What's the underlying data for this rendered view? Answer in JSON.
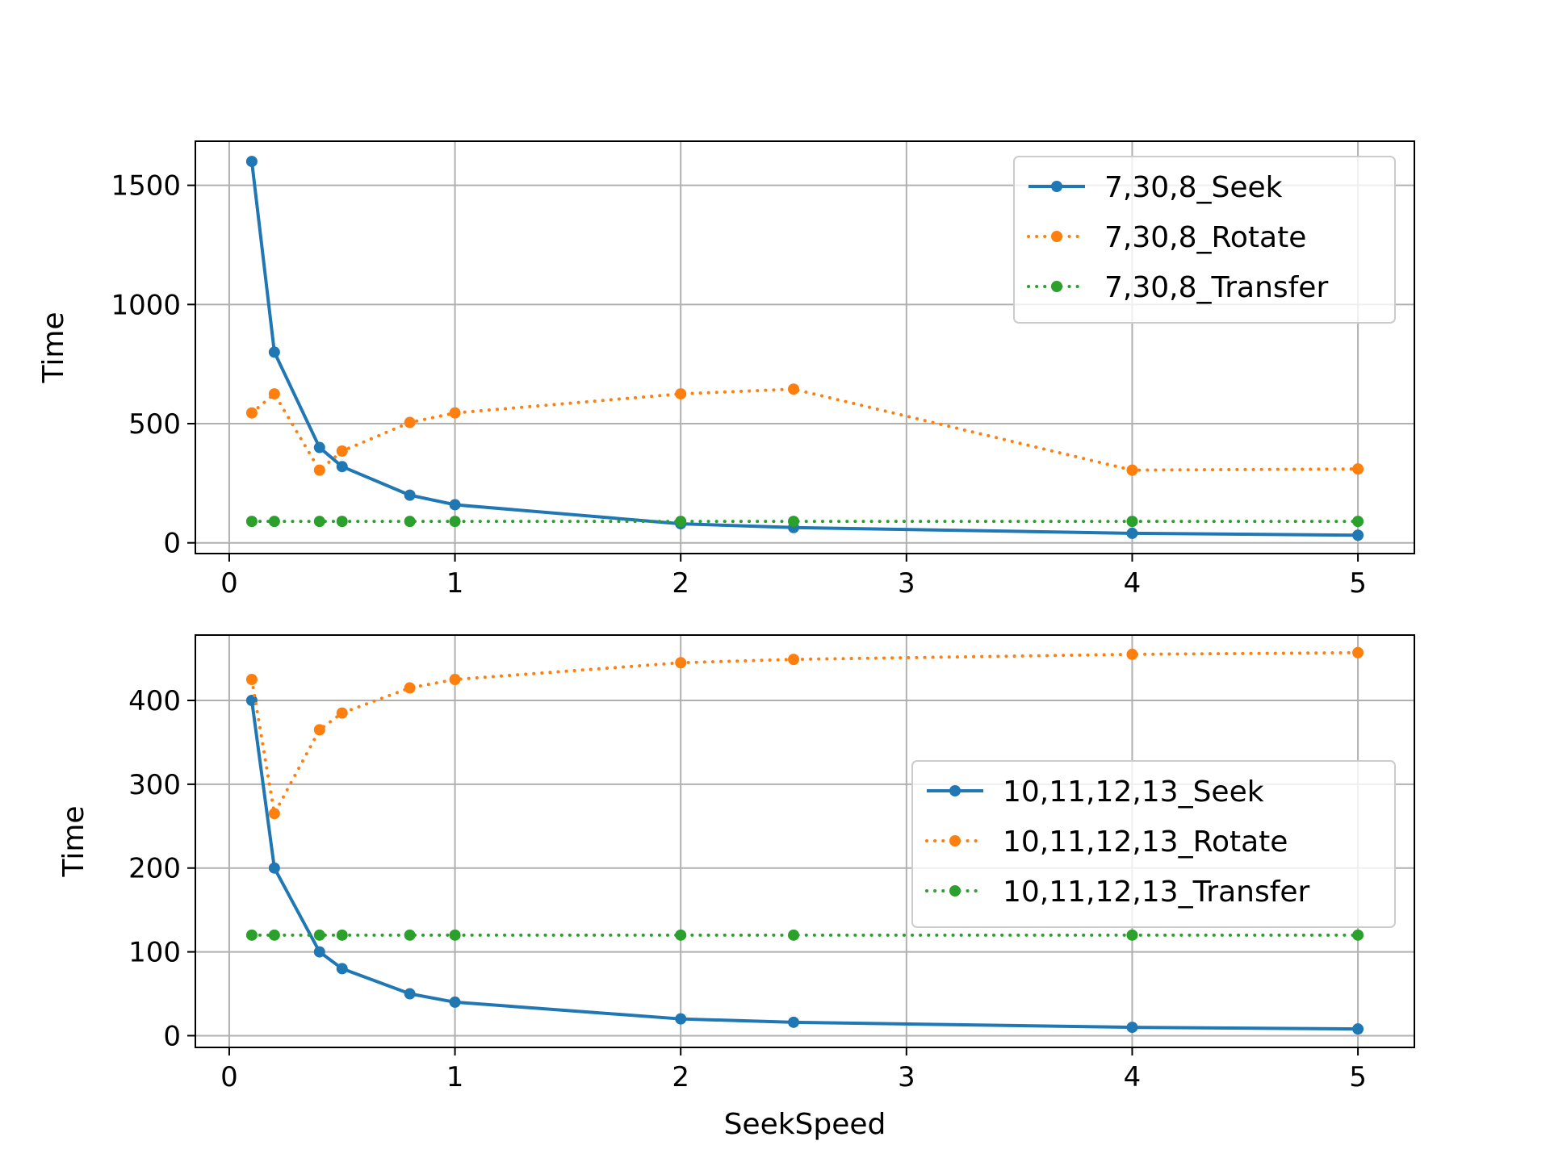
{
  "chart_data": [
    {
      "type": "line",
      "xlabel": "",
      "ylabel": "Time",
      "xlim": [
        -0.15,
        5.25
      ],
      "ylim": [
        -45,
        1685
      ],
      "xticks": [
        0,
        1,
        2,
        3,
        4,
        5
      ],
      "xtick_labels": [
        "0",
        "1",
        "2",
        "3",
        "4",
        "5"
      ],
      "yticks": [
        0,
        500,
        1000,
        1500
      ],
      "ytick_labels": [
        "0",
        "500",
        "1000",
        "1500"
      ],
      "grid": true,
      "legend_position": "upper right",
      "x": [
        0.1,
        0.2,
        0.4,
        0.5,
        0.8,
        1,
        2,
        2.5,
        4,
        5
      ],
      "series": [
        {
          "name": "7,30,8_Seek",
          "color": "#1f77b4",
          "style": "solid",
          "values": [
            1600,
            800,
            400,
            320,
            200,
            160,
            80,
            64,
            40,
            32
          ]
        },
        {
          "name": "7,30,8_Rotate",
          "color": "#ff7f0e",
          "style": "dotted",
          "values": [
            545,
            625,
            305,
            385,
            505,
            545,
            625,
            645,
            305,
            310
          ]
        },
        {
          "name": "7,30,8_Transfer",
          "color": "#2ca02c",
          "style": "dotted",
          "values": [
            90,
            90,
            90,
            90,
            90,
            90,
            90,
            90,
            90,
            90
          ]
        }
      ]
    },
    {
      "type": "line",
      "xlabel": "SeekSpeed",
      "ylabel": "Time",
      "xlim": [
        -0.15,
        5.25
      ],
      "ylim": [
        -14,
        478
      ],
      "xticks": [
        0,
        1,
        2,
        3,
        4,
        5
      ],
      "xtick_labels": [
        "0",
        "1",
        "2",
        "3",
        "4",
        "5"
      ],
      "yticks": [
        0,
        100,
        200,
        300,
        400
      ],
      "ytick_labels": [
        "0",
        "100",
        "200",
        "300",
        "400"
      ],
      "grid": true,
      "legend_position": "center right",
      "x": [
        0.1,
        0.2,
        0.4,
        0.5,
        0.8,
        1,
        2,
        2.5,
        4,
        5
      ],
      "series": [
        {
          "name": "10,11,12,13_Seek",
          "color": "#1f77b4",
          "style": "solid",
          "values": [
            400,
            200,
            100,
            80,
            50,
            40,
            20,
            16,
            10,
            8
          ]
        },
        {
          "name": "10,11,12,13_Rotate",
          "color": "#ff7f0e",
          "style": "dotted",
          "values": [
            425,
            265,
            365,
            385,
            415,
            425,
            445,
            449,
            455,
            457
          ]
        },
        {
          "name": "10,11,12,13_Transfer",
          "color": "#2ca02c",
          "style": "dotted",
          "values": [
            120,
            120,
            120,
            120,
            120,
            120,
            120,
            120,
            120,
            120
          ]
        }
      ]
    }
  ]
}
